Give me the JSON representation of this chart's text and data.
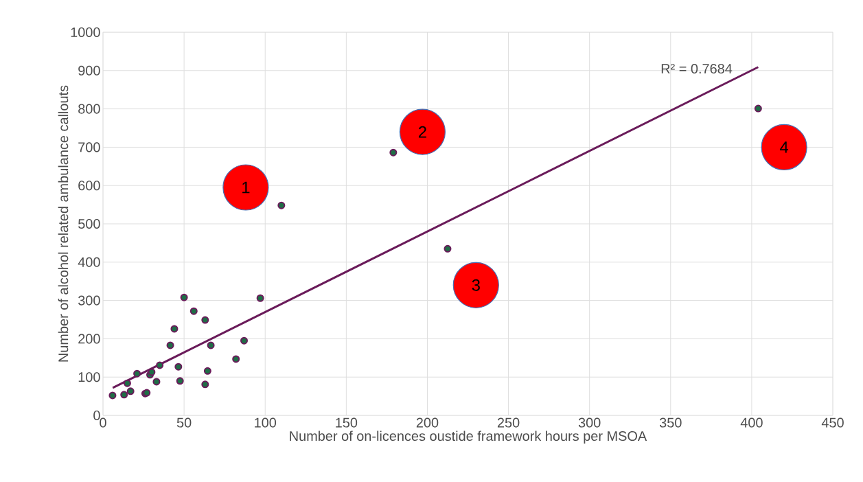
{
  "chart_data": {
    "type": "scatter",
    "xlabel": "Number of on-licences oustide framework hours per MSOA",
    "ylabel": "Number of alcohol related ambulance callouts",
    "series": [
      {
        "color": "#6a1b5a",
        "marker": "circle",
        "x": [
          5.9,
          13,
          17,
          15,
          21,
          26,
          27,
          29,
          30,
          33,
          35,
          41.5,
          44,
          46.5,
          47.5,
          50,
          56,
          63,
          64.5,
          63,
          66.5,
          82,
          87,
          97,
          110,
          179,
          212.5,
          404
        ],
        "values": [
          52,
          54,
          63,
          84,
          109,
          57,
          59,
          106,
          113,
          88,
          131,
          183,
          226,
          127,
          90,
          308,
          272,
          249,
          116,
          81,
          183,
          147,
          195,
          306,
          548,
          686,
          435,
          801
        ]
      },
      {
        "type": "line",
        "color": "#6a1b5a",
        "marker": "none",
        "x": [
          6,
          404
        ],
        "values": [
          72,
          909
        ]
      }
    ],
    "xlim": [
      0,
      450
    ],
    "xticks": [
      0,
      50,
      100,
      150,
      200,
      250,
      300,
      350,
      400,
      450
    ],
    "ylim": [
      0,
      1000
    ],
    "yticks": [
      0,
      100,
      200,
      300,
      400,
      500,
      600,
      700,
      800,
      900,
      1000
    ],
    "grid": true,
    "annotations": [
      "R² = 0.7684",
      "1",
      "2",
      "3",
      "4"
    ]
  }
}
